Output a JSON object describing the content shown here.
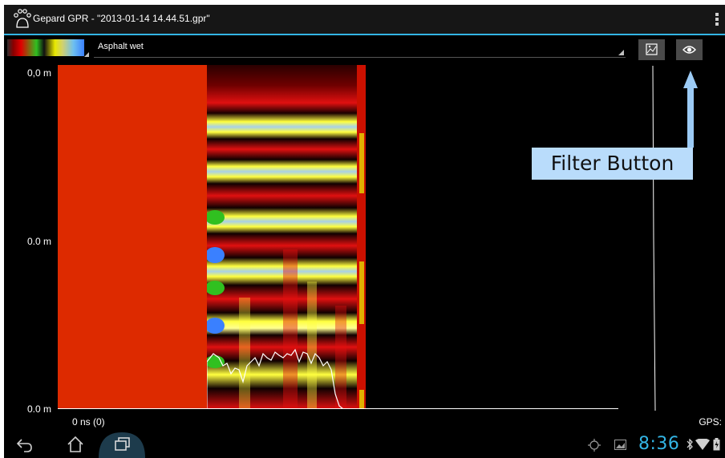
{
  "app": {
    "title": "Gepard GPR - \"2013-01-14 14.44.51.gpr\"",
    "logo_icon": "paw-icon",
    "menu_icon": "overflow-menu-icon"
  },
  "toolbar": {
    "palette_icon": "color-palette-swatch",
    "material": "Asphalt wet",
    "map_icon": "map-icon",
    "filter_icon": "eye-icon"
  },
  "plot": {
    "depth_labels": [
      "0,0 m",
      "0.0 m",
      "0.0 m"
    ],
    "time_label": "0 ns  (0)",
    "gps_label": "GPS:"
  },
  "annotation": {
    "label": "Filter Button",
    "color": "#b9dcfb"
  },
  "status": {
    "time": "8:36",
    "accent_color": "#33b5e5"
  },
  "nav": {
    "back_icon": "back-icon",
    "home_icon": "home-icon",
    "recents_icon": "recent-apps-icon"
  }
}
